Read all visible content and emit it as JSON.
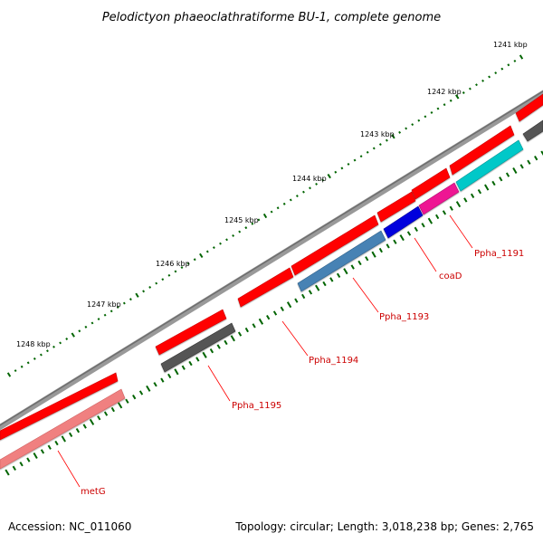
{
  "title": "Pelodictyon phaeoclathratiforme BU-1, complete genome",
  "footer": {
    "accession": "Accession: NC_011060",
    "summary": "Topology: circular; Length: 3,018,238 bp; Genes: 2,765"
  },
  "ruler": {
    "labels": [
      "1241 kbp",
      "1242 kbp",
      "1243 kbp",
      "1244 kbp",
      "1245 kbp",
      "1246 kbp",
      "1247 kbp",
      "1248 kbp"
    ]
  },
  "genes": [
    {
      "name": "Ppha_1191",
      "labeled": true
    },
    {
      "name": "coaD",
      "labeled": true
    },
    {
      "name": "Ppha_1193",
      "labeled": true
    },
    {
      "name": "Ppha_1194",
      "labeled": true
    },
    {
      "name": "Ppha_1195",
      "labeled": true
    },
    {
      "name": "metG",
      "labeled": true
    }
  ],
  "colors": {
    "cds": "#ff0000",
    "cds_light": "#f08080",
    "backbone": "#808080",
    "tick": "#006400",
    "label": "#cc0000",
    "feature_grey": "#555555",
    "feature_steelblue": "#4682b4",
    "feature_blue": "#0000dd",
    "feature_magenta": "#ee1493",
    "feature_cyan": "#00c0c0"
  }
}
